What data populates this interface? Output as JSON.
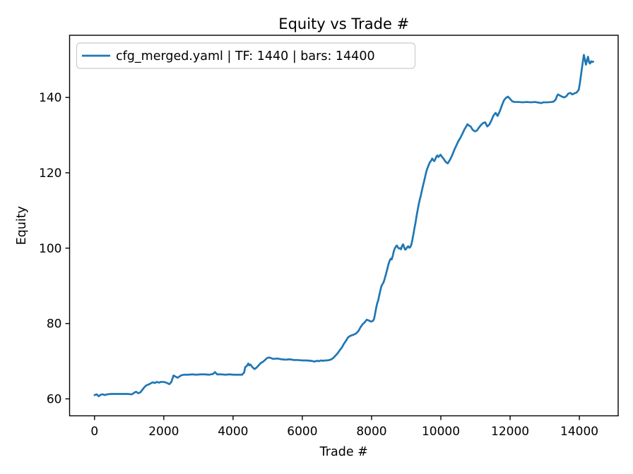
{
  "chart_data": {
    "type": "line",
    "title": "Equity vs Trade #",
    "xlabel": "Trade #",
    "ylabel": "Equity",
    "xlim": [
      -720,
      15120
    ],
    "ylim": [
      55.5,
      156.5
    ],
    "xticks": [
      0,
      2000,
      4000,
      6000,
      8000,
      10000,
      12000,
      14000
    ],
    "yticks": [
      60,
      80,
      100,
      120,
      140
    ],
    "grid": false,
    "legend": {
      "position": "upper-left",
      "entries": [
        {
          "label": "cfg_merged.yaml | TF: 1440 | bars: 14400",
          "color": "#1f77b4"
        }
      ]
    },
    "series": [
      {
        "name": "cfg_merged.yaml | TF: 1440 | bars: 14400",
        "color": "#1f77b4",
        "points": [
          [
            0,
            61.0
          ],
          [
            60,
            61.2
          ],
          [
            120,
            60.7
          ],
          [
            180,
            61.1
          ],
          [
            240,
            61.2
          ],
          [
            300,
            61.0
          ],
          [
            360,
            61.2
          ],
          [
            480,
            61.3
          ],
          [
            600,
            61.3
          ],
          [
            720,
            61.3
          ],
          [
            840,
            61.3
          ],
          [
            960,
            61.3
          ],
          [
            1080,
            61.2
          ],
          [
            1140,
            61.6
          ],
          [
            1200,
            61.9
          ],
          [
            1260,
            61.5
          ],
          [
            1320,
            61.7
          ],
          [
            1380,
            62.4
          ],
          [
            1440,
            63.1
          ],
          [
            1500,
            63.6
          ],
          [
            1560,
            63.8
          ],
          [
            1620,
            64.1
          ],
          [
            1680,
            64.4
          ],
          [
            1740,
            64.2
          ],
          [
            1800,
            64.5
          ],
          [
            1860,
            64.3
          ],
          [
            1920,
            64.5
          ],
          [
            1980,
            64.5
          ],
          [
            2040,
            64.4
          ],
          [
            2100,
            64.2
          ],
          [
            2160,
            63.9
          ],
          [
            2220,
            64.5
          ],
          [
            2280,
            66.2
          ],
          [
            2340,
            65.9
          ],
          [
            2400,
            65.6
          ],
          [
            2460,
            66.0
          ],
          [
            2520,
            66.3
          ],
          [
            2580,
            66.4
          ],
          [
            2700,
            66.4
          ],
          [
            2820,
            66.5
          ],
          [
            2940,
            66.4
          ],
          [
            3060,
            66.5
          ],
          [
            3180,
            66.5
          ],
          [
            3300,
            66.4
          ],
          [
            3420,
            66.6
          ],
          [
            3480,
            67.1
          ],
          [
            3540,
            66.5
          ],
          [
            3660,
            66.5
          ],
          [
            3780,
            66.4
          ],
          [
            3900,
            66.5
          ],
          [
            4020,
            66.4
          ],
          [
            4140,
            66.4
          ],
          [
            4260,
            66.4
          ],
          [
            4320,
            67.0
          ],
          [
            4350,
            68.4
          ],
          [
            4380,
            68.6
          ],
          [
            4410,
            68.9
          ],
          [
            4440,
            69.4
          ],
          [
            4470,
            68.9
          ],
          [
            4500,
            69.1
          ],
          [
            4560,
            68.4
          ],
          [
            4620,
            67.9
          ],
          [
            4680,
            68.3
          ],
          [
            4740,
            68.9
          ],
          [
            4800,
            69.5
          ],
          [
            4860,
            69.8
          ],
          [
            4920,
            70.3
          ],
          [
            4980,
            70.8
          ],
          [
            5040,
            71.0
          ],
          [
            5100,
            70.8
          ],
          [
            5160,
            70.6
          ],
          [
            5280,
            70.7
          ],
          [
            5400,
            70.5
          ],
          [
            5520,
            70.4
          ],
          [
            5640,
            70.5
          ],
          [
            5760,
            70.3
          ],
          [
            5880,
            70.3
          ],
          [
            6000,
            70.2
          ],
          [
            6120,
            70.2
          ],
          [
            6240,
            70.1
          ],
          [
            6360,
            69.9
          ],
          [
            6420,
            70.1
          ],
          [
            6480,
            70.0
          ],
          [
            6540,
            70.2
          ],
          [
            6600,
            70.1
          ],
          [
            6660,
            70.2
          ],
          [
            6720,
            70.2
          ],
          [
            6780,
            70.3
          ],
          [
            6840,
            70.5
          ],
          [
            6900,
            70.9
          ],
          [
            6960,
            71.5
          ],
          [
            7020,
            72.1
          ],
          [
            7080,
            72.9
          ],
          [
            7140,
            73.6
          ],
          [
            7200,
            74.6
          ],
          [
            7260,
            75.4
          ],
          [
            7320,
            76.3
          ],
          [
            7380,
            76.7
          ],
          [
            7440,
            76.9
          ],
          [
            7500,
            77.1
          ],
          [
            7560,
            77.4
          ],
          [
            7620,
            78.0
          ],
          [
            7680,
            79.0
          ],
          [
            7740,
            79.8
          ],
          [
            7800,
            80.3
          ],
          [
            7860,
            81.0
          ],
          [
            7920,
            80.8
          ],
          [
            7980,
            80.5
          ],
          [
            8040,
            80.7
          ],
          [
            8070,
            81.2
          ],
          [
            8100,
            82.5
          ],
          [
            8130,
            84.0
          ],
          [
            8160,
            85.3
          ],
          [
            8190,
            86.1
          ],
          [
            8220,
            87.4
          ],
          [
            8250,
            88.6
          ],
          [
            8280,
            89.8
          ],
          [
            8310,
            90.4
          ],
          [
            8340,
            90.8
          ],
          [
            8370,
            91.6
          ],
          [
            8400,
            92.6
          ],
          [
            8430,
            93.6
          ],
          [
            8460,
            94.7
          ],
          [
            8490,
            95.8
          ],
          [
            8520,
            96.6
          ],
          [
            8550,
            97.2
          ],
          [
            8580,
            97.0
          ],
          [
            8610,
            97.9
          ],
          [
            8640,
            99.1
          ],
          [
            8670,
            99.9
          ],
          [
            8700,
            100.4
          ],
          [
            8730,
            100.7
          ],
          [
            8760,
            100.2
          ],
          [
            8790,
            99.9
          ],
          [
            8820,
            100.0
          ],
          [
            8850,
            99.7
          ],
          [
            8880,
            100.6
          ],
          [
            8910,
            101.0
          ],
          [
            8940,
            100.2
          ],
          [
            8970,
            99.6
          ],
          [
            9000,
            99.8
          ],
          [
            9030,
            100.3
          ],
          [
            9060,
            100.5
          ],
          [
            9090,
            100.1
          ],
          [
            9120,
            100.3
          ],
          [
            9150,
            101.0
          ],
          [
            9180,
            102.3
          ],
          [
            9210,
            103.8
          ],
          [
            9240,
            105.4
          ],
          [
            9270,
            106.8
          ],
          [
            9300,
            108.6
          ],
          [
            9330,
            110.1
          ],
          [
            9360,
            111.6
          ],
          [
            9390,
            112.8
          ],
          [
            9420,
            113.9
          ],
          [
            9450,
            115.2
          ],
          [
            9480,
            116.4
          ],
          [
            9510,
            117.5
          ],
          [
            9540,
            118.7
          ],
          [
            9570,
            119.9
          ],
          [
            9600,
            120.9
          ],
          [
            9630,
            121.6
          ],
          [
            9660,
            122.3
          ],
          [
            9690,
            122.9
          ],
          [
            9720,
            123.2
          ],
          [
            9750,
            123.8
          ],
          [
            9780,
            123.4
          ],
          [
            9810,
            123.1
          ],
          [
            9840,
            123.6
          ],
          [
            9870,
            124.3
          ],
          [
            9900,
            124.6
          ],
          [
            9930,
            124.2
          ],
          [
            9960,
            124.5
          ],
          [
            9990,
            124.8
          ],
          [
            10020,
            124.4
          ],
          [
            10080,
            123.7
          ],
          [
            10140,
            122.9
          ],
          [
            10200,
            122.5
          ],
          [
            10260,
            123.4
          ],
          [
            10320,
            124.5
          ],
          [
            10380,
            125.9
          ],
          [
            10440,
            127.1
          ],
          [
            10500,
            128.3
          ],
          [
            10560,
            129.2
          ],
          [
            10620,
            130.3
          ],
          [
            10680,
            131.5
          ],
          [
            10740,
            132.4
          ],
          [
            10770,
            132.9
          ],
          [
            10800,
            132.6
          ],
          [
            10860,
            132.3
          ],
          [
            10920,
            131.4
          ],
          [
            10980,
            131.0
          ],
          [
            11040,
            131.2
          ],
          [
            11100,
            132.0
          ],
          [
            11160,
            132.7
          ],
          [
            11220,
            133.2
          ],
          [
            11280,
            133.4
          ],
          [
            11340,
            132.3
          ],
          [
            11400,
            132.8
          ],
          [
            11460,
            133.9
          ],
          [
            11520,
            135.2
          ],
          [
            11580,
            135.9
          ],
          [
            11640,
            135.1
          ],
          [
            11700,
            136.3
          ],
          [
            11760,
            137.8
          ],
          [
            11820,
            139.2
          ],
          [
            11880,
            139.9
          ],
          [
            11940,
            140.2
          ],
          [
            12000,
            139.6
          ],
          [
            12060,
            139.0
          ],
          [
            12120,
            138.8
          ],
          [
            12240,
            138.8
          ],
          [
            12360,
            138.7
          ],
          [
            12480,
            138.8
          ],
          [
            12600,
            138.7
          ],
          [
            12720,
            138.8
          ],
          [
            12840,
            138.6
          ],
          [
            12900,
            138.5
          ],
          [
            12960,
            138.7
          ],
          [
            13080,
            138.7
          ],
          [
            13200,
            138.8
          ],
          [
            13260,
            138.9
          ],
          [
            13320,
            139.5
          ],
          [
            13350,
            140.3
          ],
          [
            13380,
            140.8
          ],
          [
            13440,
            140.5
          ],
          [
            13500,
            140.2
          ],
          [
            13560,
            140.0
          ],
          [
            13620,
            140.3
          ],
          [
            13680,
            141.0
          ],
          [
            13740,
            141.2
          ],
          [
            13800,
            140.8
          ],
          [
            13860,
            141.1
          ],
          [
            13920,
            141.3
          ],
          [
            13980,
            142.0
          ],
          [
            14010,
            143.5
          ],
          [
            14040,
            145.5
          ],
          [
            14070,
            147.5
          ],
          [
            14100,
            149.5
          ],
          [
            14130,
            151.3
          ],
          [
            14160,
            150.0
          ],
          [
            14190,
            148.7
          ],
          [
            14220,
            149.9
          ],
          [
            14250,
            150.8
          ],
          [
            14280,
            149.3
          ],
          [
            14310,
            149.0
          ],
          [
            14340,
            149.6
          ],
          [
            14370,
            149.4
          ],
          [
            14400,
            149.5
          ]
        ]
      }
    ]
  },
  "colors": {
    "line": "#1f77b4",
    "axis": "#000000",
    "text": "#000000",
    "background": "#ffffff",
    "legend_border": "#cccccc",
    "legend_background": "#ffffff"
  }
}
